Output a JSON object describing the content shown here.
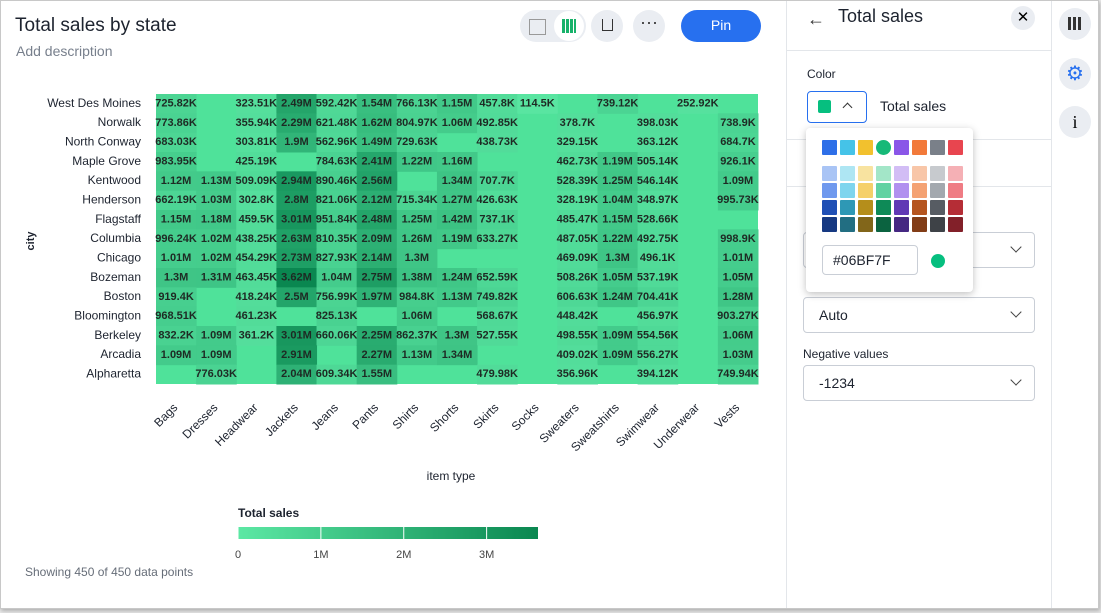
{
  "header": {
    "title": "Total sales by state",
    "description": "Add description",
    "pin": "Pin"
  },
  "chart_data": {
    "type": "heatmap",
    "x_label": "item type",
    "y_label": "city",
    "categories": [
      "Bags",
      "Dresses",
      "Headwear",
      "Jackets",
      "Jeans",
      "Pants",
      "Shirts",
      "Shorts",
      "Skirts",
      "Socks",
      "Sweaters",
      "Sweatshirts",
      "Swimwear",
      "Underwear",
      "Vests"
    ],
    "rows": [
      "West Des Moines",
      "Norwalk",
      "North Conway",
      "Maple Grove",
      "Kentwood",
      "Henderson",
      "Flagstaff",
      "Columbia",
      "Chicago",
      "Bozeman",
      "Boston",
      "Bloomington",
      "Berkeley",
      "Arcadia",
      "Alpharetta"
    ],
    "values": [
      [
        725820,
        null,
        323510,
        2490000,
        592420,
        1540000,
        766130,
        1150000,
        457800,
        114500,
        null,
        739120,
        null,
        252920,
        null
      ],
      [
        773860,
        null,
        355940,
        2290000,
        621480,
        1620000,
        804970,
        1060000,
        492850,
        null,
        378700,
        null,
        398030,
        null,
        738900
      ],
      [
        683030,
        null,
        303810,
        1900000,
        562960,
        1490000,
        729630,
        null,
        438730,
        null,
        329150,
        null,
        363120,
        null,
        684700
      ],
      [
        983950,
        null,
        425190,
        null,
        784630,
        2410000,
        1220000,
        1160000,
        null,
        null,
        462730,
        1190000,
        505140,
        null,
        926100
      ],
      [
        1120000,
        1130000,
        509090,
        2940000,
        890460,
        2560000,
        null,
        1340000,
        707700,
        null,
        528390,
        1250000,
        546140,
        null,
        1090000
      ],
      [
        662190,
        1030000,
        302800,
        2800000,
        821060,
        2120000,
        715340,
        1270000,
        426630,
        null,
        328190,
        1040000,
        348970,
        null,
        995730
      ],
      [
        1150000,
        1180000,
        459500,
        3010000,
        951840,
        2480000,
        1250000,
        1420000,
        737100,
        null,
        485470,
        1150000,
        528660,
        null,
        null
      ],
      [
        996240,
        1020000,
        438250,
        2630000,
        810350,
        2090000,
        1260000,
        1190000,
        633270,
        null,
        487050,
        1220000,
        492750,
        null,
        998900
      ],
      [
        1010000,
        1020000,
        454290,
        2730000,
        827930,
        2140000,
        1300000,
        null,
        null,
        null,
        469090,
        1300000,
        496100,
        null,
        1010000
      ],
      [
        1300000,
        1310000,
        463450,
        3620000,
        1040000,
        2750000,
        1380000,
        1240000,
        652590,
        null,
        508260,
        1050000,
        537190,
        null,
        1050000
      ],
      [
        919400,
        null,
        418240,
        2500000,
        756990,
        1970000,
        984800,
        1130000,
        749820,
        null,
        606630,
        1240000,
        704410,
        null,
        1280000
      ],
      [
        968510,
        null,
        461230,
        null,
        825130,
        null,
        1060000,
        null,
        568670,
        null,
        448420,
        null,
        456970,
        null,
        903270
      ],
      [
        832200,
        1090000,
        361200,
        3010000,
        660060,
        2250000,
        862370,
        1300000,
        527550,
        null,
        498550,
        1090000,
        554560,
        null,
        1060000
      ],
      [
        1090000,
        1090000,
        null,
        2910000,
        null,
        2270000,
        1130000,
        1340000,
        null,
        null,
        409020,
        1090000,
        556270,
        null,
        1030000
      ],
      [
        null,
        776030,
        null,
        2040000,
        609340,
        1550000,
        null,
        null,
        479980,
        null,
        356960,
        null,
        394120,
        null,
        749940
      ]
    ],
    "value_labels": [
      [
        "725.82K",
        null,
        "323.51K",
        "2.49M",
        "592.42K",
        "1.54M",
        "766.13K",
        "1.15M",
        "457.8K",
        "114.5K",
        null,
        "739.12K",
        null,
        "252.92K",
        null
      ],
      [
        "773.86K",
        null,
        "355.94K",
        "2.29M",
        "621.48K",
        "1.62M",
        "804.97K",
        "1.06M",
        "492.85K",
        null,
        "378.7K",
        null,
        "398.03K",
        null,
        "738.9K"
      ],
      [
        "683.03K",
        null,
        "303.81K",
        "1.9M",
        "562.96K",
        "1.49M",
        "729.63K",
        null,
        "438.73K",
        null,
        "329.15K",
        null,
        "363.12K",
        null,
        "684.7K"
      ],
      [
        "983.95K",
        null,
        "425.19K",
        null,
        "784.63K",
        "2.41M",
        "1.22M",
        "1.16M",
        null,
        null,
        "462.73K",
        "1.19M",
        "505.14K",
        null,
        "926.1K"
      ],
      [
        "1.12M",
        "1.13M",
        "509.09K",
        "2.94M",
        "890.46K",
        "2.56M",
        null,
        "1.34M",
        "707.7K",
        null,
        "528.39K",
        "1.25M",
        "546.14K",
        null,
        "1.09M"
      ],
      [
        "662.19K",
        "1.03M",
        "302.8K",
        "2.8M",
        "821.06K",
        "2.12M",
        "715.34K",
        "1.27M",
        "426.63K",
        null,
        "328.19K",
        "1.04M",
        "348.97K",
        null,
        "995.73K"
      ],
      [
        "1.15M",
        "1.18M",
        "459.5K",
        "3.01M",
        "951.84K",
        "2.48M",
        "1.25M",
        "1.42M",
        "737.1K",
        null,
        "485.47K",
        "1.15M",
        "528.66K",
        null,
        null
      ],
      [
        "996.24K",
        "1.02M",
        "438.25K",
        "2.63M",
        "810.35K",
        "2.09M",
        "1.26M",
        "1.19M",
        "633.27K",
        null,
        "487.05K",
        "1.22M",
        "492.75K",
        null,
        "998.9K"
      ],
      [
        "1.01M",
        "1.02M",
        "454.29K",
        "2.73M",
        "827.93K",
        "2.14M",
        "1.3M",
        null,
        null,
        null,
        "469.09K",
        "1.3M",
        "496.1K",
        null,
        "1.01M"
      ],
      [
        "1.3M",
        "1.31M",
        "463.45K",
        "3.62M",
        "1.04M",
        "2.75M",
        "1.38M",
        "1.24M",
        "652.59K",
        null,
        "508.26K",
        "1.05M",
        "537.19K",
        null,
        "1.05M"
      ],
      [
        "919.4K",
        null,
        "418.24K",
        "2.5M",
        "756.99K",
        "1.97M",
        "984.8K",
        "1.13M",
        "749.82K",
        null,
        "606.63K",
        "1.24M",
        "704.41K",
        null,
        "1.28M"
      ],
      [
        "968.51K",
        null,
        "461.23K",
        null,
        "825.13K",
        null,
        "1.06M",
        null,
        "568.67K",
        null,
        "448.42K",
        null,
        "456.97K",
        null,
        "903.27K"
      ],
      [
        "832.2K",
        "1.09M",
        "361.2K",
        "3.01M",
        "660.06K",
        "2.25M",
        "862.37K",
        "1.3M",
        "527.55K",
        null,
        "498.55K",
        "1.09M",
        "554.56K",
        null,
        "1.06M"
      ],
      [
        "1.09M",
        "1.09M",
        null,
        "2.91M",
        null,
        "2.27M",
        "1.13M",
        "1.34M",
        null,
        null,
        "409.02K",
        "1.09M",
        "556.27K",
        null,
        "1.03M"
      ],
      [
        null,
        "776.03K",
        null,
        "2.04M",
        "609.34K",
        "1.55M",
        null,
        null,
        "479.98K",
        null,
        "356.96K",
        null,
        "394.12K",
        null,
        "749.94K"
      ]
    ],
    "legend": {
      "title": "Total sales",
      "clim": [
        0,
        3620000
      ],
      "colors": [
        "#5ce8a4",
        "#0a8750"
      ],
      "ticks": [
        0,
        {
          "value": 1000000,
          "label": "1M"
        },
        {
          "value": 2000000,
          "label": "2M"
        },
        {
          "value": 3000000,
          "label": "3M"
        }
      ]
    }
  },
  "footer": "Showing 450 of 450 data points",
  "panel": {
    "title": "Total sales",
    "color_label": "Color",
    "series_name": "Total sales",
    "hex": "#06BF7F",
    "select_value": "Auto",
    "negative_label": "Negative values",
    "negative_value": "-1234"
  }
}
